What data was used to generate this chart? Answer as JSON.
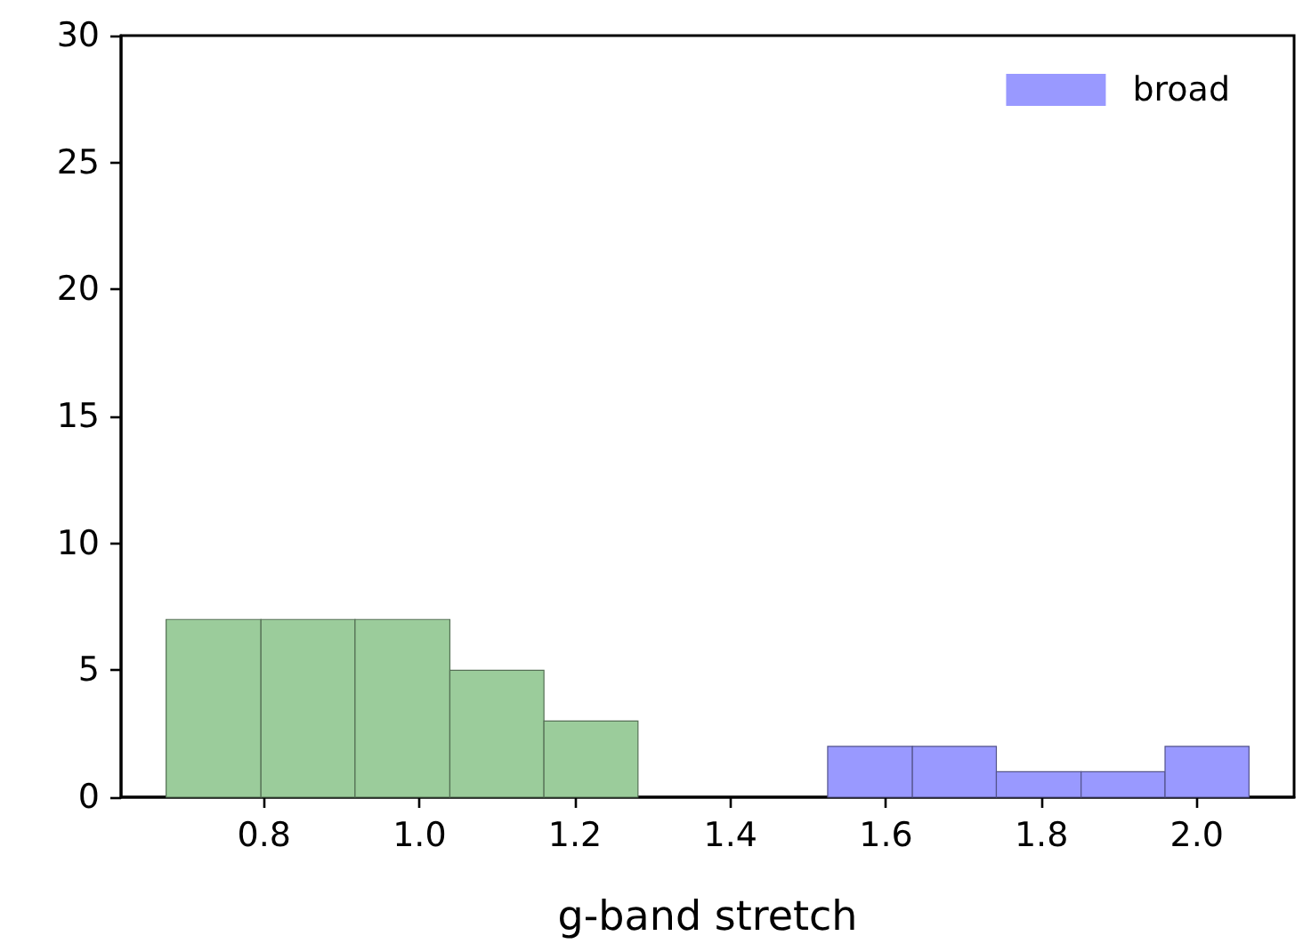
{
  "chart_data": {
    "type": "histogram",
    "xlabel": "g-band stretch",
    "bins": [
      0.674,
      0.796,
      0.917,
      1.039,
      1.16,
      1.281,
      1.525,
      1.634,
      1.742,
      1.851,
      1.959,
      2.067
    ],
    "series": [
      {
        "color": "#9bcc9b",
        "values": [
          7,
          7,
          7,
          5,
          3,
          null,
          null,
          null,
          null,
          null,
          null
        ]
      },
      {
        "name": "broad",
        "color": "#9999ff",
        "values": [
          null,
          null,
          null,
          null,
          null,
          null,
          2,
          2,
          1,
          1,
          2
        ]
      }
    ],
    "xlim": [
      0.616,
      2.125
    ],
    "xticks": [
      0.8,
      {
        "value": 1,
        "label": "1.0"
      },
      1.2,
      1.4,
      1.6,
      1.8,
      {
        "value": 2,
        "label": "2.0"
      }
    ],
    "ylim": [
      0,
      30
    ],
    "yticks": [
      0,
      5,
      10,
      15,
      20,
      25,
      30
    ],
    "grid": false,
    "legend": "top right"
  }
}
